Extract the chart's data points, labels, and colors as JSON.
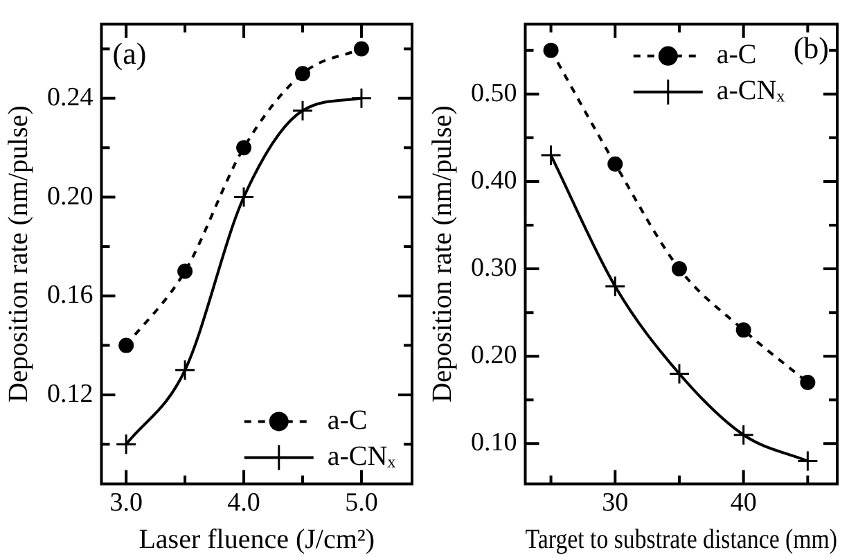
{
  "chart_data": [
    {
      "type": "line",
      "xlabel": "Laser fluence (J/cm²)",
      "ylabel": "Deposition rate (nm/pulse)",
      "annotations": [
        "(a)"
      ],
      "x": [
        3.0,
        3.5,
        4.0,
        4.5,
        5.0
      ],
      "xlim": [
        2.79,
        5.43
      ],
      "xticks": [
        {
          "value": 3.0,
          "label": "3.0"
        },
        {
          "value": 3.5,
          "label": null
        },
        {
          "value": 4.0,
          "label": "4.0"
        },
        {
          "value": 4.5,
          "label": null
        },
        {
          "value": 5.0,
          "label": "5.0"
        }
      ],
      "ylim": [
        0.084,
        0.27
      ],
      "yticks": [
        {
          "value": 0.1,
          "label": null
        },
        0.12,
        {
          "value": 0.14,
          "label": null
        },
        0.16,
        {
          "value": 0.18,
          "label": null
        },
        {
          "value": 0.2,
          "label": "0.20"
        },
        {
          "value": 0.22,
          "label": null
        },
        0.24,
        {
          "value": 0.26,
          "label": null
        }
      ],
      "legend": "bottom right",
      "grid": false,
      "series": [
        {
          "name": "a-C",
          "color": "#000000",
          "marker": "circle",
          "line_style": "dashed",
          "values": [
            0.14,
            0.17,
            0.22,
            0.25,
            0.26
          ]
        },
        {
          "name": "a-CNₓ",
          "color": "#000000",
          "marker": "cross",
          "line_style": "solid",
          "values": [
            0.1,
            0.13,
            0.2,
            0.235,
            0.24
          ]
        }
      ]
    },
    {
      "type": "line",
      "xlabel": "Target to substrate distance (mm)",
      "ylabel": "Deposition rate (nm/pulse)",
      "annotations": [
        "(b)"
      ],
      "x": [
        25,
        30,
        35,
        40,
        45
      ],
      "xlim": [
        23,
        47.3
      ],
      "xticks": [
        {
          "value": 25,
          "label": null
        },
        30,
        {
          "value": 35,
          "label": null
        },
        40,
        {
          "value": 45,
          "label": null
        }
      ],
      "ylim": [
        0.054,
        0.58
      ],
      "yticks": [
        {
          "value": 0.1,
          "label": "0.10"
        },
        {
          "value": 0.15,
          "label": null
        },
        {
          "value": 0.2,
          "label": "0.20"
        },
        {
          "value": 0.25,
          "label": null
        },
        {
          "value": 0.3,
          "label": "0.30"
        },
        {
          "value": 0.35,
          "label": null
        },
        {
          "value": 0.4,
          "label": "0.40"
        },
        {
          "value": 0.45,
          "label": null
        },
        {
          "value": 0.5,
          "label": "0.50"
        },
        {
          "value": 0.55,
          "label": null
        }
      ],
      "legend": "top right",
      "grid": false,
      "series": [
        {
          "name": "a-C",
          "color": "#000000",
          "marker": "circle",
          "line_style": "dashed",
          "values": [
            0.55,
            0.42,
            0.3,
            0.23,
            0.17
          ]
        },
        {
          "name": "a-CNₓ",
          "color": "#000000",
          "marker": "cross",
          "line_style": "solid",
          "values": [
            0.43,
            0.28,
            0.18,
            0.11,
            0.08
          ]
        }
      ]
    }
  ]
}
